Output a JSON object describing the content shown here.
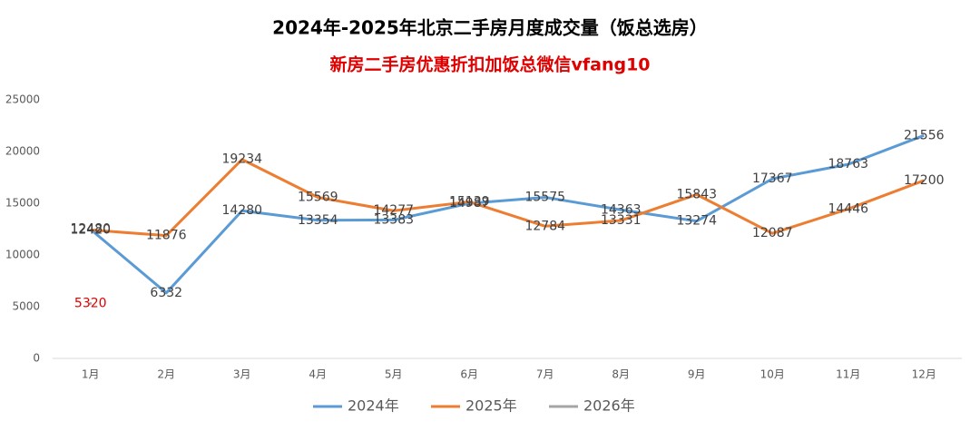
{
  "chart_data": {
    "type": "line",
    "title": "2024年-2025年北京二手房月度成交量（饭总选房）",
    "subtitle": "新房二手房优惠折扣加饭总微信vfang10",
    "categories": [
      "1月",
      "2月",
      "3月",
      "4月",
      "5月",
      "6月",
      "7月",
      "8月",
      "9月",
      "10月",
      "11月",
      "12月"
    ],
    "series": [
      {
        "name": "2024年",
        "color": "#5b9bd5",
        "values": [
          12480,
          6332,
          14280,
          13354,
          13383,
          14987,
          15575,
          14363,
          13274,
          17367,
          18763,
          21556
        ]
      },
      {
        "name": "2025年",
        "color": "#ed7d31",
        "values": [
          12420,
          11876,
          19234,
          15569,
          14277,
          15139,
          12784,
          13331,
          15843,
          12087,
          14446,
          17200
        ]
      },
      {
        "name": "2026年",
        "color": "#a5a5a5",
        "label_color": "#e00000",
        "values": [
          5320,
          null,
          null,
          null,
          null,
          null,
          null,
          null,
          null,
          null,
          null,
          null
        ]
      }
    ],
    "ylim": [
      0,
      25000
    ],
    "yticks": [
      0,
      5000,
      10000,
      15000,
      20000,
      25000
    ],
    "grid": false,
    "legend": "bottom"
  }
}
